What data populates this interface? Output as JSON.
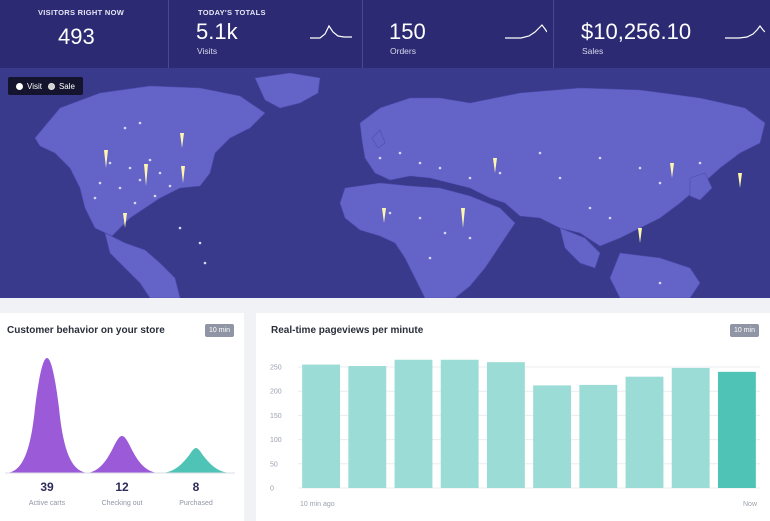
{
  "colors": {
    "header_bg": "#2b2a72",
    "map_bg": "#3a3a8c",
    "land": "#6463c8",
    "purple": "#9b5ad8",
    "teal": "#4fc4b6",
    "bar": "#9cdcd6",
    "bar_now": "#4fc4b6"
  },
  "header": {
    "visitors_label": "VISITORS RIGHT NOW",
    "visitors_value": "493",
    "totals_label": "TODAY'S TOTALS",
    "stats": [
      {
        "value": "5.1k",
        "label": "Visits"
      },
      {
        "value": "150",
        "label": "Orders"
      },
      {
        "value": "$10,256.10",
        "label": "Sales"
      }
    ]
  },
  "map": {
    "legend": [
      {
        "label": "Visit",
        "icon": "circle-filled-icon"
      },
      {
        "label": "Sale",
        "icon": "circle-dotted-icon"
      }
    ]
  },
  "behavior": {
    "title": "Customer behavior on your store",
    "badge": "10 min",
    "stages": [
      {
        "value": "39",
        "label": "Active carts"
      },
      {
        "value": "12",
        "label": "Checking out"
      },
      {
        "value": "8",
        "label": "Purchased"
      }
    ]
  },
  "pageviews": {
    "title": "Real-time pageviews per minute",
    "badge": "10 min",
    "x_start": "10 min ago",
    "x_end": "Now"
  },
  "chart_data": {
    "type": "bar",
    "categories": [
      "1",
      "2",
      "3",
      "4",
      "5",
      "6",
      "7",
      "8",
      "9",
      "10"
    ],
    "values": [
      255,
      252,
      265,
      265,
      260,
      212,
      213,
      230,
      248,
      240
    ],
    "ylim": [
      0,
      250
    ],
    "yticks": [
      "250",
      "200",
      "150",
      "100",
      "50",
      "0"
    ],
    "grid": true
  }
}
